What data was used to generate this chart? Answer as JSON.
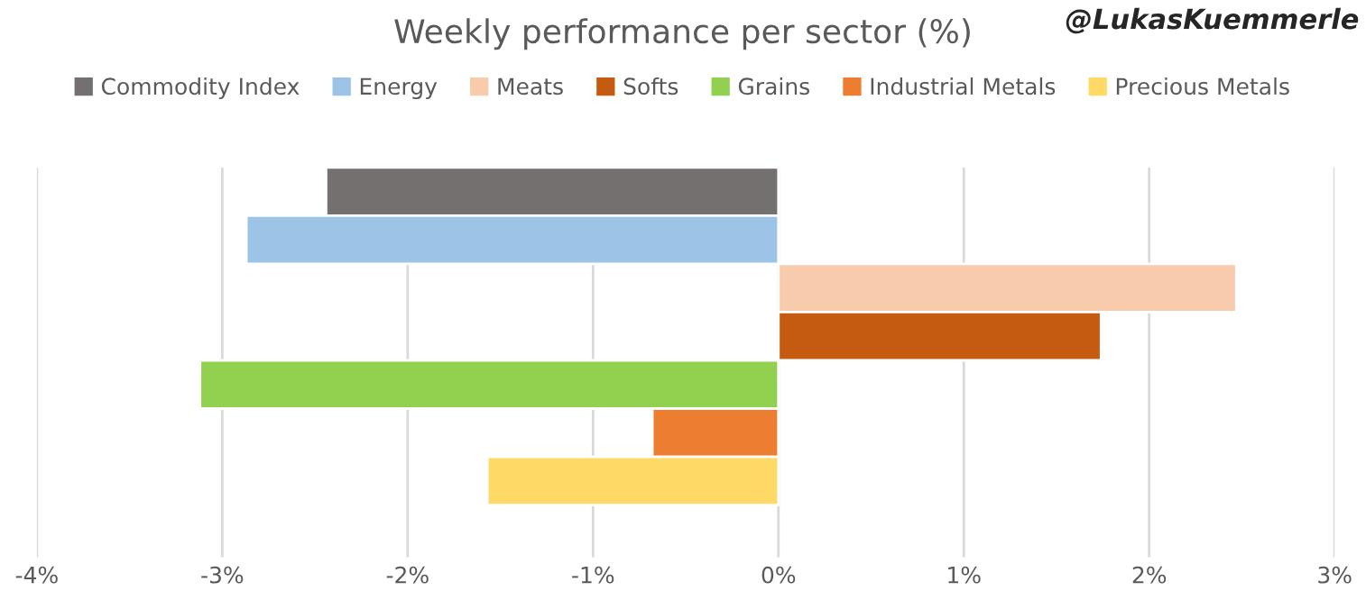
{
  "chart_data": {
    "type": "bar",
    "orientation": "horizontal",
    "title": "Weekly performance per sector (%)",
    "categories": [
      null
    ],
    "series": [
      {
        "name": "Commodity Index",
        "color": "#747070",
        "values": [
          -2.44
        ]
      },
      {
        "name": "Energy",
        "color": "#9dc3e6",
        "values": [
          -2.87
        ]
      },
      {
        "name": "Meats",
        "color": "#f8cbad",
        "values": [
          2.47
        ]
      },
      {
        "name": "Softs",
        "color": "#c55a11",
        "values": [
          1.74
        ]
      },
      {
        "name": "Grains",
        "color": "#92d050",
        "values": [
          -3.12
        ]
      },
      {
        "name": "Industrial Metals",
        "color": "#ed7d31",
        "values": [
          -0.68
        ]
      },
      {
        "name": "Precious Metals",
        "color": "#ffd966",
        "values": [
          -1.57
        ]
      }
    ],
    "xlim": [
      -4,
      3
    ],
    "xticks": [
      {
        "value": -4,
        "label": "-4%"
      },
      {
        "value": -3,
        "label": "-3%"
      },
      {
        "value": -2,
        "label": "-2%"
      },
      {
        "value": -1,
        "label": "-1%"
      },
      {
        "value": 0,
        "label": "0%"
      },
      {
        "value": 1,
        "label": "1%"
      },
      {
        "value": 2,
        "label": "2%"
      },
      {
        "value": 3,
        "label": "3%"
      }
    ],
    "grid": "x",
    "legend": "top",
    "tick_labels": "x",
    "annotations": [
      "@LukasKuemmerle"
    ]
  }
}
